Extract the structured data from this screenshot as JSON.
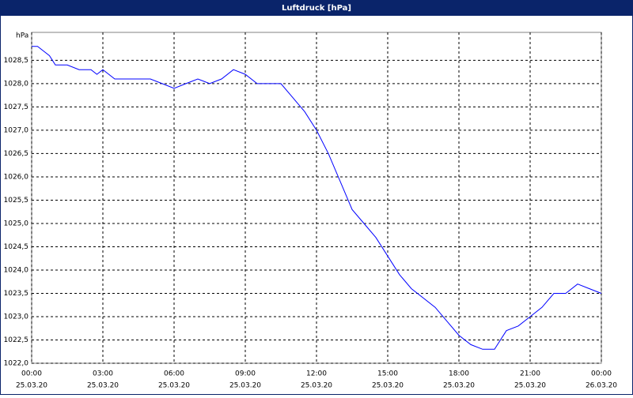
{
  "chart_data": {
    "type": "line",
    "title": "Luftdruck [hPa]",
    "y_label": "hPa",
    "x": [
      0,
      0.25,
      0.5,
      0.75,
      1,
      1.5,
      2,
      2.5,
      2.75,
      3,
      3.5,
      4,
      4.5,
      5,
      5.5,
      6,
      6.5,
      7,
      7.5,
      8,
      8.5,
      9,
      9.5,
      10,
      10.5,
      11,
      11.5,
      12,
      12.5,
      13,
      13.5,
      14,
      14.5,
      15,
      15.5,
      16,
      16.5,
      17,
      17.5,
      18,
      18.5,
      19,
      19.5,
      20,
      20.5,
      21,
      21.5,
      22,
      22.5,
      23,
      23.5,
      24
    ],
    "series": [
      {
        "name": "Luftdruck",
        "color": "#0000ff",
        "values": [
          1028.8,
          1028.8,
          1028.7,
          1028.6,
          1028.4,
          1028.4,
          1028.3,
          1028.3,
          1028.2,
          1028.3,
          1028.1,
          1028.1,
          1028.1,
          1028.1,
          1028.0,
          1027.9,
          1028.0,
          1028.1,
          1028.0,
          1028.1,
          1028.3,
          1028.2,
          1028.0,
          1028.0,
          1028.0,
          1027.7,
          1027.4,
          1027.0,
          1026.5,
          1025.9,
          1025.3,
          1025.0,
          1024.7,
          1024.3,
          1023.9,
          1023.6,
          1023.4,
          1023.2,
          1022.9,
          1022.6,
          1022.4,
          1022.3,
          1022.3,
          1022.7,
          1022.8,
          1023.0,
          1023.2,
          1023.5,
          1023.5,
          1023.7,
          1023.6,
          1023.5
        ]
      }
    ],
    "xlim": [
      0,
      24
    ],
    "xticks": [
      {
        "value": 0,
        "label": "00:00",
        "date": "25.03.20"
      },
      {
        "value": 3,
        "label": "03:00",
        "date": "25.03.20"
      },
      {
        "value": 6,
        "label": "06:00",
        "date": "25.03.20"
      },
      {
        "value": 9,
        "label": "09:00",
        "date": "25.03.20"
      },
      {
        "value": 12,
        "label": "12:00",
        "date": "25.03.20"
      },
      {
        "value": 15,
        "label": "15:00",
        "date": "25.03.20"
      },
      {
        "value": 18,
        "label": "18:00",
        "date": "25.03.20"
      },
      {
        "value": 21,
        "label": "21:00",
        "date": "25.03.20"
      },
      {
        "value": 24,
        "label": "00:00",
        "date": "26.03.20"
      }
    ],
    "ylim": [
      1022,
      1029.1
    ],
    "yticks": [
      {
        "value": 1022,
        "label": "1022,0"
      },
      {
        "value": 1022.5,
        "label": "1022,5"
      },
      {
        "value": 1023,
        "label": "1023,0"
      },
      {
        "value": 1023.5,
        "label": "1023,5"
      },
      {
        "value": 1024,
        "label": "1024,0"
      },
      {
        "value": 1024.5,
        "label": "1024,5"
      },
      {
        "value": 1025,
        "label": "1025,0"
      },
      {
        "value": 1025.5,
        "label": "1025,5"
      },
      {
        "value": 1026,
        "label": "1026,0"
      },
      {
        "value": 1026.5,
        "label": "1026,5"
      },
      {
        "value": 1027,
        "label": "1027,0"
      },
      {
        "value": 1027.5,
        "label": "1027,5"
      },
      {
        "value": 1028,
        "label": "1028,0"
      },
      {
        "value": 1028.5,
        "label": "1028,5"
      }
    ],
    "grid": true
  }
}
